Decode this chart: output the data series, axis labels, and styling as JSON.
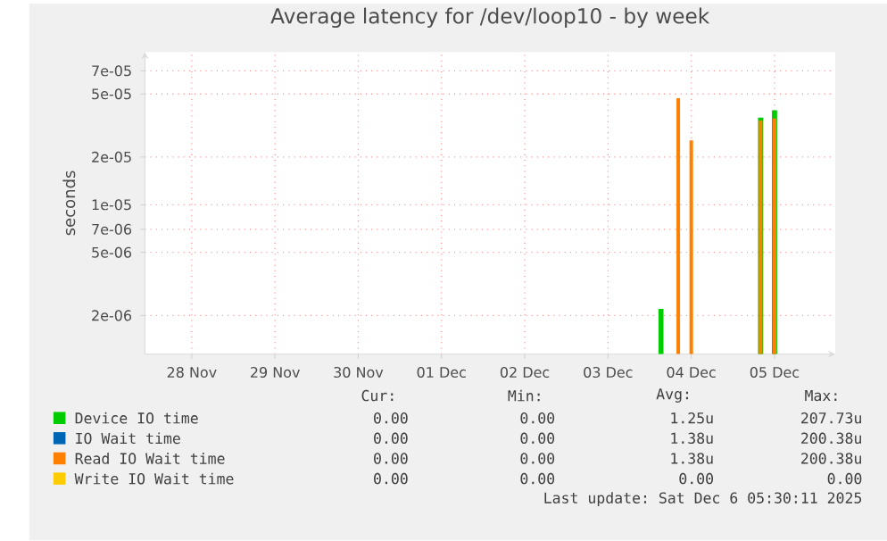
{
  "chart_data": {
    "type": "bar",
    "title": "Average latency for /dev/loop10 - by week",
    "ylabel": "seconds",
    "log": "y",
    "grid": true,
    "legend": "bottom",
    "series": [
      {
        "name": "Device IO time",
        "color": "#00cc00",
        "x": [
          "2025-12-04T03:15",
          "2025-12-05T08:00",
          "2025-12-05T12:00"
        ],
        "values": [
          2.2e-06,
          3.55e-05,
          3.94e-05
        ]
      },
      {
        "name": "IO Wait time",
        "color": "#0066b3"
      },
      {
        "name": "Read IO Wait time",
        "color": "#ff8000",
        "x": [
          "2025-12-04T08:15",
          "2025-12-04T12:00",
          "2025-12-05T08:00",
          "2025-12-05T12:00"
        ],
        "values": [
          4.7e-05,
          2.55e-05,
          3.4e-05,
          3.5e-05
        ]
      },
      {
        "name": "Write IO Wait time",
        "color": "#ffcc00"
      }
    ],
    "xlim": [
      "2025-11-27T22:30",
      "2025-12-06T05:30"
    ],
    "xticks": [
      {
        "value": "2025-11-28T12:00",
        "label": "28 Nov"
      },
      {
        "value": "2025-11-29T12:00",
        "label": "29 Nov"
      },
      {
        "value": "2025-11-30T12:00",
        "label": "30 Nov"
      },
      {
        "value": "2025-12-01T12:00",
        "label": "01 Dec"
      },
      {
        "value": "2025-12-02T12:00",
        "label": "02 Dec"
      },
      {
        "value": "2025-12-03T12:00",
        "label": "03 Dec"
      },
      {
        "value": "2025-12-04T12:00",
        "label": "04 Dec"
      },
      {
        "value": "2025-12-05T12:00",
        "label": "05 Dec"
      }
    ],
    "ylim": [
      1.14e-06,
      9.2e-05
    ],
    "yticks": [
      {
        "value": 2e-06,
        "label": "2e-06"
      },
      {
        "value": 5e-06,
        "label": "5e-06"
      },
      {
        "value": 7e-06,
        "label": "7e-06"
      },
      {
        "value": 1e-05,
        "label": "1e-05"
      },
      {
        "value": 2e-05,
        "label": "2e-05"
      },
      {
        "value": 5e-05,
        "label": "5e-05"
      },
      {
        "value": 7e-05,
        "label": "7e-05"
      }
    ],
    "annotations": [
      "Cur:",
      "Min:",
      "Avg:",
      "Max:",
      "0.00",
      "0.00",
      "1.25u",
      "207.73u",
      "0.00",
      "0.00",
      "1.38u",
      "200.38u",
      "0.00",
      "0.00",
      "1.38u",
      "200.38u",
      "0.00",
      "0.00",
      "0.00",
      "0.00",
      "Last update: Sat Dec  6 05:30:11 2025"
    ]
  }
}
